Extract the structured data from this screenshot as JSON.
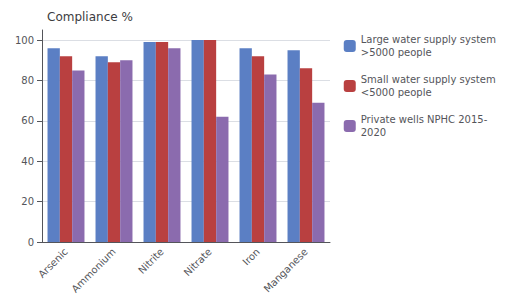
{
  "chart_data": {
    "type": "bar",
    "title": "Compliance %",
    "categories": [
      "Arsenic",
      "Ammonium",
      "Nitrite",
      "Nitrate",
      "Iron",
      "Manganese"
    ],
    "series": [
      {
        "name": "Large water supply system\n>5000 people",
        "color": "#5B7FC4",
        "values": [
          96,
          92,
          99,
          100,
          96,
          95
        ]
      },
      {
        "name": "Small water supply system\n<5000 people",
        "color": "#B94040",
        "values": [
          92,
          89,
          99,
          100,
          92,
          86
        ]
      },
      {
        "name": "Private wells NPHC 2015-\n2020",
        "color": "#8B6BAE",
        "values": [
          85,
          90,
          96,
          62,
          83,
          69
        ]
      }
    ],
    "ylim": [
      0,
      105
    ],
    "yticks": [
      0,
      20,
      40,
      60,
      80,
      100
    ],
    "grid": true,
    "legend": "right"
  }
}
